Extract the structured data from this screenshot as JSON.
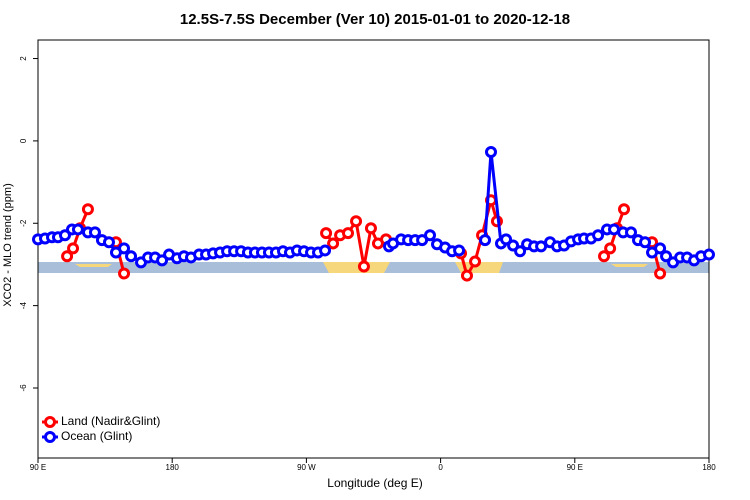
{
  "chart_data": {
    "type": "line",
    "title": "12.5S-7.5S December (Ver 10)   2015-01-01 to 2020-12-18",
    "x_label": "Longitude (deg E)",
    "y_label": "XCO2 - MLO trend (ppm)",
    "xlim": [
      90,
      540
    ],
    "xticks": [
      {
        "value": 90,
        "label": "90 E"
      },
      180,
      {
        "value": 270,
        "label": "90 W"
      },
      {
        "value": 360,
        "label": "0"
      },
      {
        "value": 450,
        "label": "90 E"
      },
      {
        "value": 540,
        "label": "180"
      }
    ],
    "ylim": [
      -7.7,
      2.45
    ],
    "yticks": [
      2,
      0,
      -2,
      -4,
      -6
    ],
    "legend": "bottom-left",
    "series": [
      {
        "name": "Land (Nadir&Glint)",
        "color": "#ff0000",
        "x": [
          109.5,
          113.5,
          118.2,
          123.5,
          130,
          142.3,
          147.7,
          200,
          283.2,
          287.9,
          292.6,
          297.9,
          303.3,
          308.6,
          313.3,
          318.0,
          323.4,
          350,
          373.7,
          377.7,
          383.1,
          387.8,
          393.8,
          397.8,
          440,
          469.6,
          473.7,
          478.3,
          483.0,
          490,
          501.8,
          507.2
        ],
        "values": [
          -2.8,
          -2.61,
          -2.12,
          -1.66,
          null,
          -2.46,
          -3.22,
          null,
          -2.24,
          -2.49,
          -2.29,
          -2.24,
          -1.95,
          -3.05,
          -2.12,
          -2.49,
          -2.39,
          null,
          -2.73,
          -3.27,
          -2.93,
          -2.29,
          -1.44,
          -1.95,
          null,
          -2.8,
          -2.61,
          -2.12,
          -1.66,
          null,
          -2.46,
          -3.22
        ]
      },
      {
        "name": "Ocean (Glint)",
        "color": "#0000ff",
        "x": [
          90,
          94.7,
          99.4,
          103.4,
          108.1,
          112.8,
          116.8,
          123.5,
          128.2,
          132.9,
          137.6,
          142.3,
          147.7,
          152.4,
          159.1,
          163.8,
          168.5,
          173.2,
          177.9,
          183.2,
          187.9,
          192.6,
          198.0,
          202.7,
          207.4,
          212.1,
          216.8,
          221.5,
          226.2,
          230.8,
          235.5,
          240.2,
          244.9,
          249.6,
          254.3,
          259.0,
          263.7,
          268.4,
          273.1,
          277.8,
          282.5,
          300,
          325.4,
          328.1,
          333.5,
          338.2,
          342.9,
          347.6,
          352.9,
          357.6,
          363.0,
          367.7,
          372.4,
          380,
          389.8,
          393.8,
          400.5,
          403.9,
          408.6,
          413.3,
          418.0,
          422.7,
          427.4,
          433.4,
          438.1,
          442.8,
          447.5,
          452.2,
          456.2,
          460.9,
          465.6,
          471.6,
          476.3,
          482.4,
          487.7,
          492.4,
          497.1,
          501.8,
          507.2,
          511.2,
          515.9,
          520.6,
          525.3,
          530.0,
          534.7,
          540
        ],
        "values": [
          -2.39,
          -2.37,
          -2.34,
          -2.34,
          -2.29,
          -2.15,
          -2.15,
          -2.22,
          -2.22,
          -2.41,
          -2.46,
          -2.71,
          -2.61,
          -2.8,
          -2.95,
          -2.83,
          -2.83,
          -2.9,
          -2.76,
          -2.85,
          -2.8,
          -2.83,
          -2.76,
          -2.76,
          -2.73,
          -2.71,
          -2.68,
          -2.68,
          -2.68,
          -2.71,
          -2.71,
          -2.71,
          -2.71,
          -2.71,
          -2.68,
          -2.71,
          -2.66,
          -2.68,
          -2.71,
          -2.71,
          -2.66,
          null,
          -2.56,
          -2.49,
          -2.39,
          -2.41,
          -2.41,
          -2.41,
          -2.29,
          -2.51,
          -2.59,
          -2.68,
          -2.66,
          null,
          -2.41,
          -0.27,
          -2.49,
          -2.39,
          -2.54,
          -2.68,
          -2.51,
          -2.56,
          -2.56,
          -2.46,
          -2.56,
          -2.54,
          -2.44,
          -2.39,
          -2.37,
          -2.37,
          -2.29,
          -2.15,
          -2.15,
          -2.22,
          -2.22,
          -2.41,
          -2.46,
          -2.71,
          -2.61,
          -2.8,
          -2.95,
          -2.83,
          -2.83,
          -2.9,
          -2.8,
          -2.76
        ]
      }
    ]
  }
}
